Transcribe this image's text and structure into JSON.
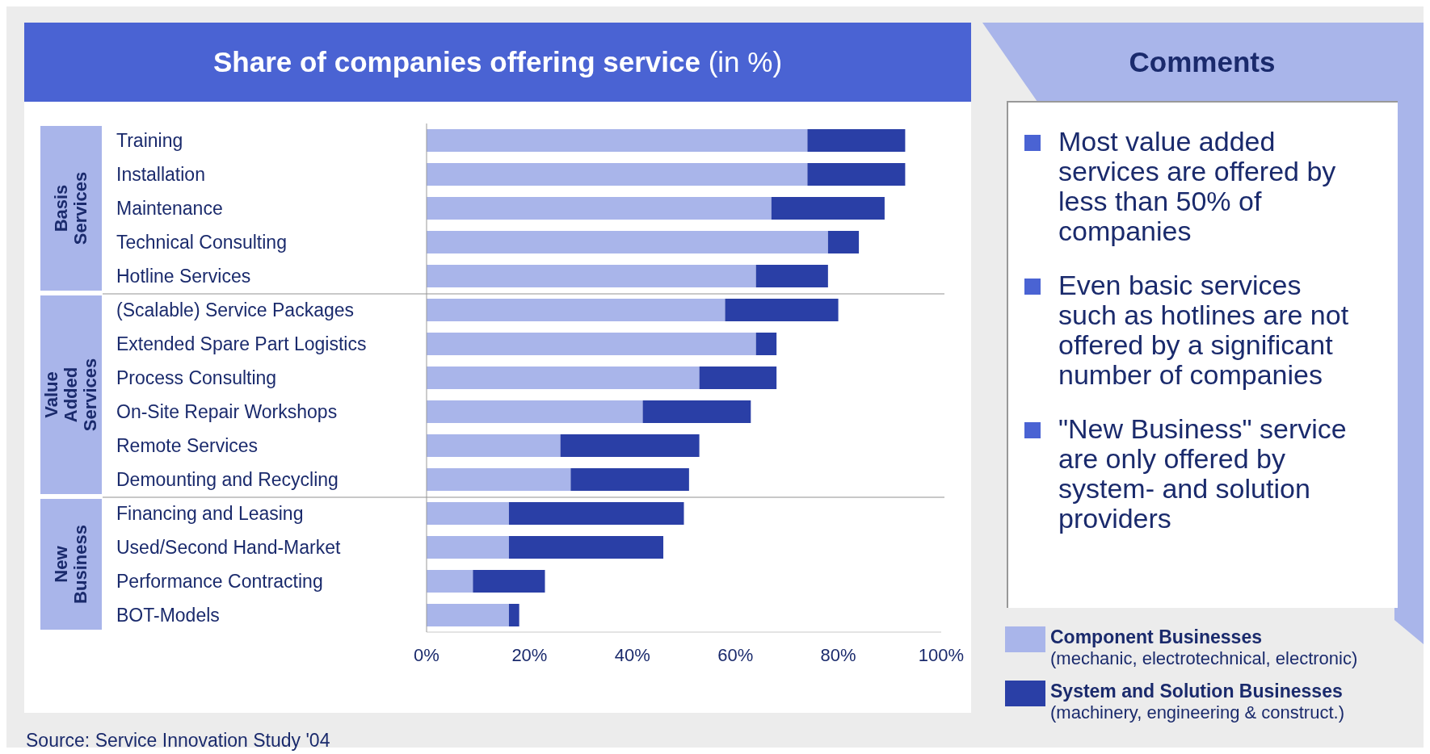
{
  "chart_data": {
    "type": "bar",
    "orientation": "horizontal",
    "stacked": true,
    "title": "Share of companies offering service (in %)",
    "categories": [
      "Training",
      "Installation",
      "Maintenance",
      "Technical Consulting",
      "Hotline Services",
      "(Scalable) Service Packages",
      "Extended Spare Part Logistics",
      "Process Consulting",
      "On-Site Repair Workshops",
      "Remote Services",
      "Demounting and Recycling",
      "Financing and Leasing",
      "Used/Second Hand-Market",
      "Performance Contracting",
      "BOT-Models"
    ],
    "series": [
      {
        "name": "Component Businesses",
        "color": "#a9b5ea",
        "values": [
          74,
          74,
          67,
          78,
          64,
          58,
          64,
          53,
          42,
          26,
          28,
          16,
          16,
          9,
          16
        ]
      },
      {
        "name": "System and Solution Businesses",
        "color": "#2a3fa6",
        "values": [
          19,
          19,
          22,
          6,
          14,
          22,
          4,
          15,
          21,
          27,
          23,
          34,
          30,
          14,
          2
        ]
      }
    ],
    "xlim": [
      0,
      100
    ],
    "xticks": [
      {
        "value": 0,
        "label": "0%"
      },
      {
        "value": 20,
        "label": "20%"
      },
      {
        "value": 40,
        "label": "40%"
      },
      {
        "value": 60,
        "label": "60%"
      },
      {
        "value": 80,
        "label": "80%"
      },
      {
        "value": 100,
        "label": "100%"
      }
    ],
    "legend": "bottom right",
    "annotations": [
      "Basis Services",
      "Value Added Services",
      "New Business",
      "Comments",
      "Most value added services are offered by less than 50% of companies",
      "Even basic services such as hotlines are not offered by a significant number of companies",
      "\"New Business\" service are only offered by system- and solution providers",
      "(mechanic, electrotechnical, electronic)",
      "(machinery, engineering & construct.)",
      "Source: Service Innovation Study '04"
    ]
  }
}
